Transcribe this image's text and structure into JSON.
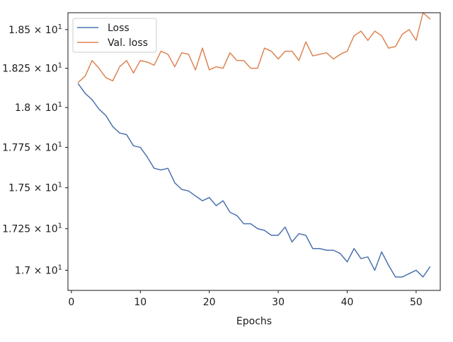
{
  "chart_data": {
    "type": "line",
    "title": "",
    "xlabel": "Epochs",
    "ylabel": "",
    "xlim": [
      -0.5,
      53.5
    ],
    "ylim": [
      16.88,
      18.61
    ],
    "y_scale": "log",
    "grid": false,
    "legend_position": "top-left",
    "x_ticks": [
      0,
      10,
      20,
      30,
      40,
      50
    ],
    "x_tick_labels": [
      "0",
      "10",
      "20",
      "30",
      "40",
      "50"
    ],
    "y_ticks": [
      17.0,
      17.25,
      17.5,
      17.75,
      18.0,
      18.25,
      18.5
    ],
    "y_tick_labels": [
      {
        "mantissa": "1.7",
        "base": "10",
        "exp": "1"
      },
      {
        "mantissa": "1.725",
        "base": "10",
        "exp": "1"
      },
      {
        "mantissa": "1.75",
        "base": "10",
        "exp": "1"
      },
      {
        "mantissa": "1.775",
        "base": "10",
        "exp": "1"
      },
      {
        "mantissa": "1.8",
        "base": "10",
        "exp": "1"
      },
      {
        "mantissa": "1.825",
        "base": "10",
        "exp": "1"
      },
      {
        "mantissa": "1.85",
        "base": "10",
        "exp": "1"
      }
    ],
    "x": [
      1,
      2,
      3,
      4,
      5,
      6,
      7,
      8,
      9,
      10,
      11,
      12,
      13,
      14,
      15,
      16,
      17,
      18,
      19,
      20,
      21,
      22,
      23,
      24,
      25,
      26,
      27,
      28,
      29,
      30,
      31,
      32,
      33,
      34,
      35,
      36,
      37,
      38,
      39,
      40,
      41,
      42,
      43,
      44,
      45,
      46,
      47,
      48,
      49,
      50,
      51,
      52
    ],
    "series": [
      {
        "name": "Loss",
        "color": "#4c72b0",
        "values": [
          18.15,
          18.09,
          18.05,
          17.99,
          17.95,
          17.88,
          17.84,
          17.83,
          17.76,
          17.75,
          17.69,
          17.62,
          17.61,
          17.62,
          17.53,
          17.49,
          17.48,
          17.45,
          17.42,
          17.44,
          17.39,
          17.42,
          17.35,
          17.33,
          17.28,
          17.28,
          17.25,
          17.24,
          17.21,
          17.21,
          17.26,
          17.17,
          17.22,
          17.21,
          17.13,
          17.13,
          17.12,
          17.12,
          17.1,
          17.05,
          17.13,
          17.07,
          17.08,
          17.0,
          17.11,
          17.03,
          16.96,
          16.96,
          16.98,
          17.0,
          16.96,
          17.02
        ]
      },
      {
        "name": "Val. loss",
        "color": "#dd8452",
        "values": [
          18.16,
          18.2,
          18.3,
          18.25,
          18.19,
          18.17,
          18.26,
          18.3,
          18.22,
          18.3,
          18.29,
          18.27,
          18.36,
          18.34,
          18.26,
          18.35,
          18.34,
          18.24,
          18.38,
          18.24,
          18.26,
          18.25,
          18.35,
          18.3,
          18.3,
          18.25,
          18.25,
          18.38,
          18.36,
          18.31,
          18.36,
          18.36,
          18.3,
          18.42,
          18.33,
          18.34,
          18.35,
          18.31,
          18.34,
          18.36,
          18.46,
          18.49,
          18.43,
          18.49,
          18.46,
          18.38,
          18.39,
          18.47,
          18.5,
          18.43,
          18.61,
          18.57
        ]
      }
    ]
  }
}
